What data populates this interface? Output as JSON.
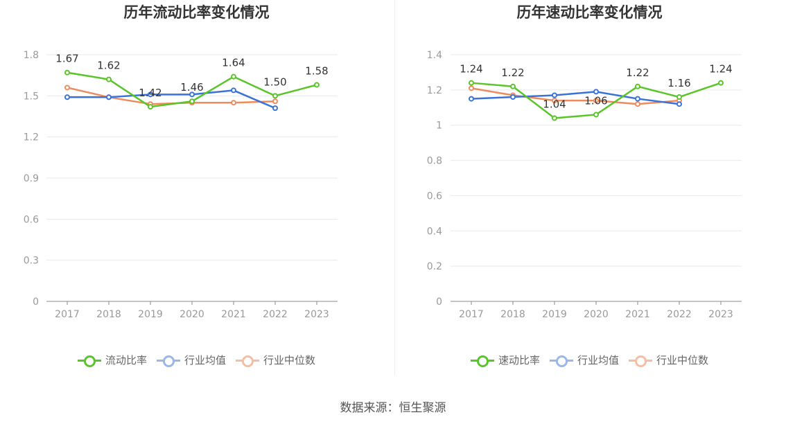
{
  "source_label": "数据来源：恒生聚源",
  "chart_data": [
    {
      "type": "line",
      "title": "历年流动比率变化情况",
      "categories": [
        "2017",
        "2018",
        "2019",
        "2020",
        "2021",
        "2022",
        "2023"
      ],
      "ylim": [
        0,
        1.8
      ],
      "yticks": [
        "0",
        "0.3",
        "0.6",
        "0.9",
        "1.2",
        "1.5",
        "1.8"
      ],
      "ytick_values": [
        0,
        0.3,
        0.6,
        0.9,
        1.2,
        1.5,
        1.8
      ],
      "grid": true,
      "legend_position": "bottom",
      "series": [
        {
          "name": "流动比率",
          "color": "#5ac528",
          "values": [
            1.67,
            1.62,
            1.42,
            1.46,
            1.64,
            1.5,
            1.58
          ],
          "labels": [
            "1.67",
            "1.62",
            "1.42",
            "1.46",
            "1.64",
            "1.50",
            "1.58"
          ]
        },
        {
          "name": "行业均值",
          "color": "#3a72d8",
          "values": [
            1.49,
            1.49,
            1.51,
            1.51,
            1.54,
            1.41,
            null
          ]
        },
        {
          "name": "行业中位数",
          "color": "#ef8a5c",
          "values": [
            1.56,
            1.49,
            1.44,
            1.45,
            1.45,
            1.46,
            null
          ]
        }
      ]
    },
    {
      "type": "line",
      "title": "历年速动比率变化情况",
      "categories": [
        "2017",
        "2018",
        "2019",
        "2020",
        "2021",
        "2022",
        "2023"
      ],
      "ylim": [
        0,
        1.4
      ],
      "yticks": [
        "0",
        "0.2",
        "0.4",
        "0.6",
        "0.8",
        "1",
        "1.2",
        "1.4"
      ],
      "ytick_values": [
        0,
        0.2,
        0.4,
        0.6,
        0.8,
        1.0,
        1.2,
        1.4
      ],
      "grid": true,
      "legend_position": "bottom",
      "series": [
        {
          "name": "速动比率",
          "color": "#5ac528",
          "values": [
            1.24,
            1.22,
            1.04,
            1.06,
            1.22,
            1.16,
            1.24
          ],
          "labels": [
            "1.24",
            "1.22",
            "1.04",
            "1.06",
            "1.22",
            "1.16",
            "1.24"
          ]
        },
        {
          "name": "行业均值",
          "color": "#3a72d8",
          "values": [
            1.15,
            1.16,
            1.17,
            1.19,
            1.15,
            1.12,
            null
          ]
        },
        {
          "name": "行业中位数",
          "color": "#ef8a5c",
          "values": [
            1.21,
            1.17,
            1.14,
            1.14,
            1.12,
            1.14,
            null
          ]
        }
      ]
    }
  ]
}
